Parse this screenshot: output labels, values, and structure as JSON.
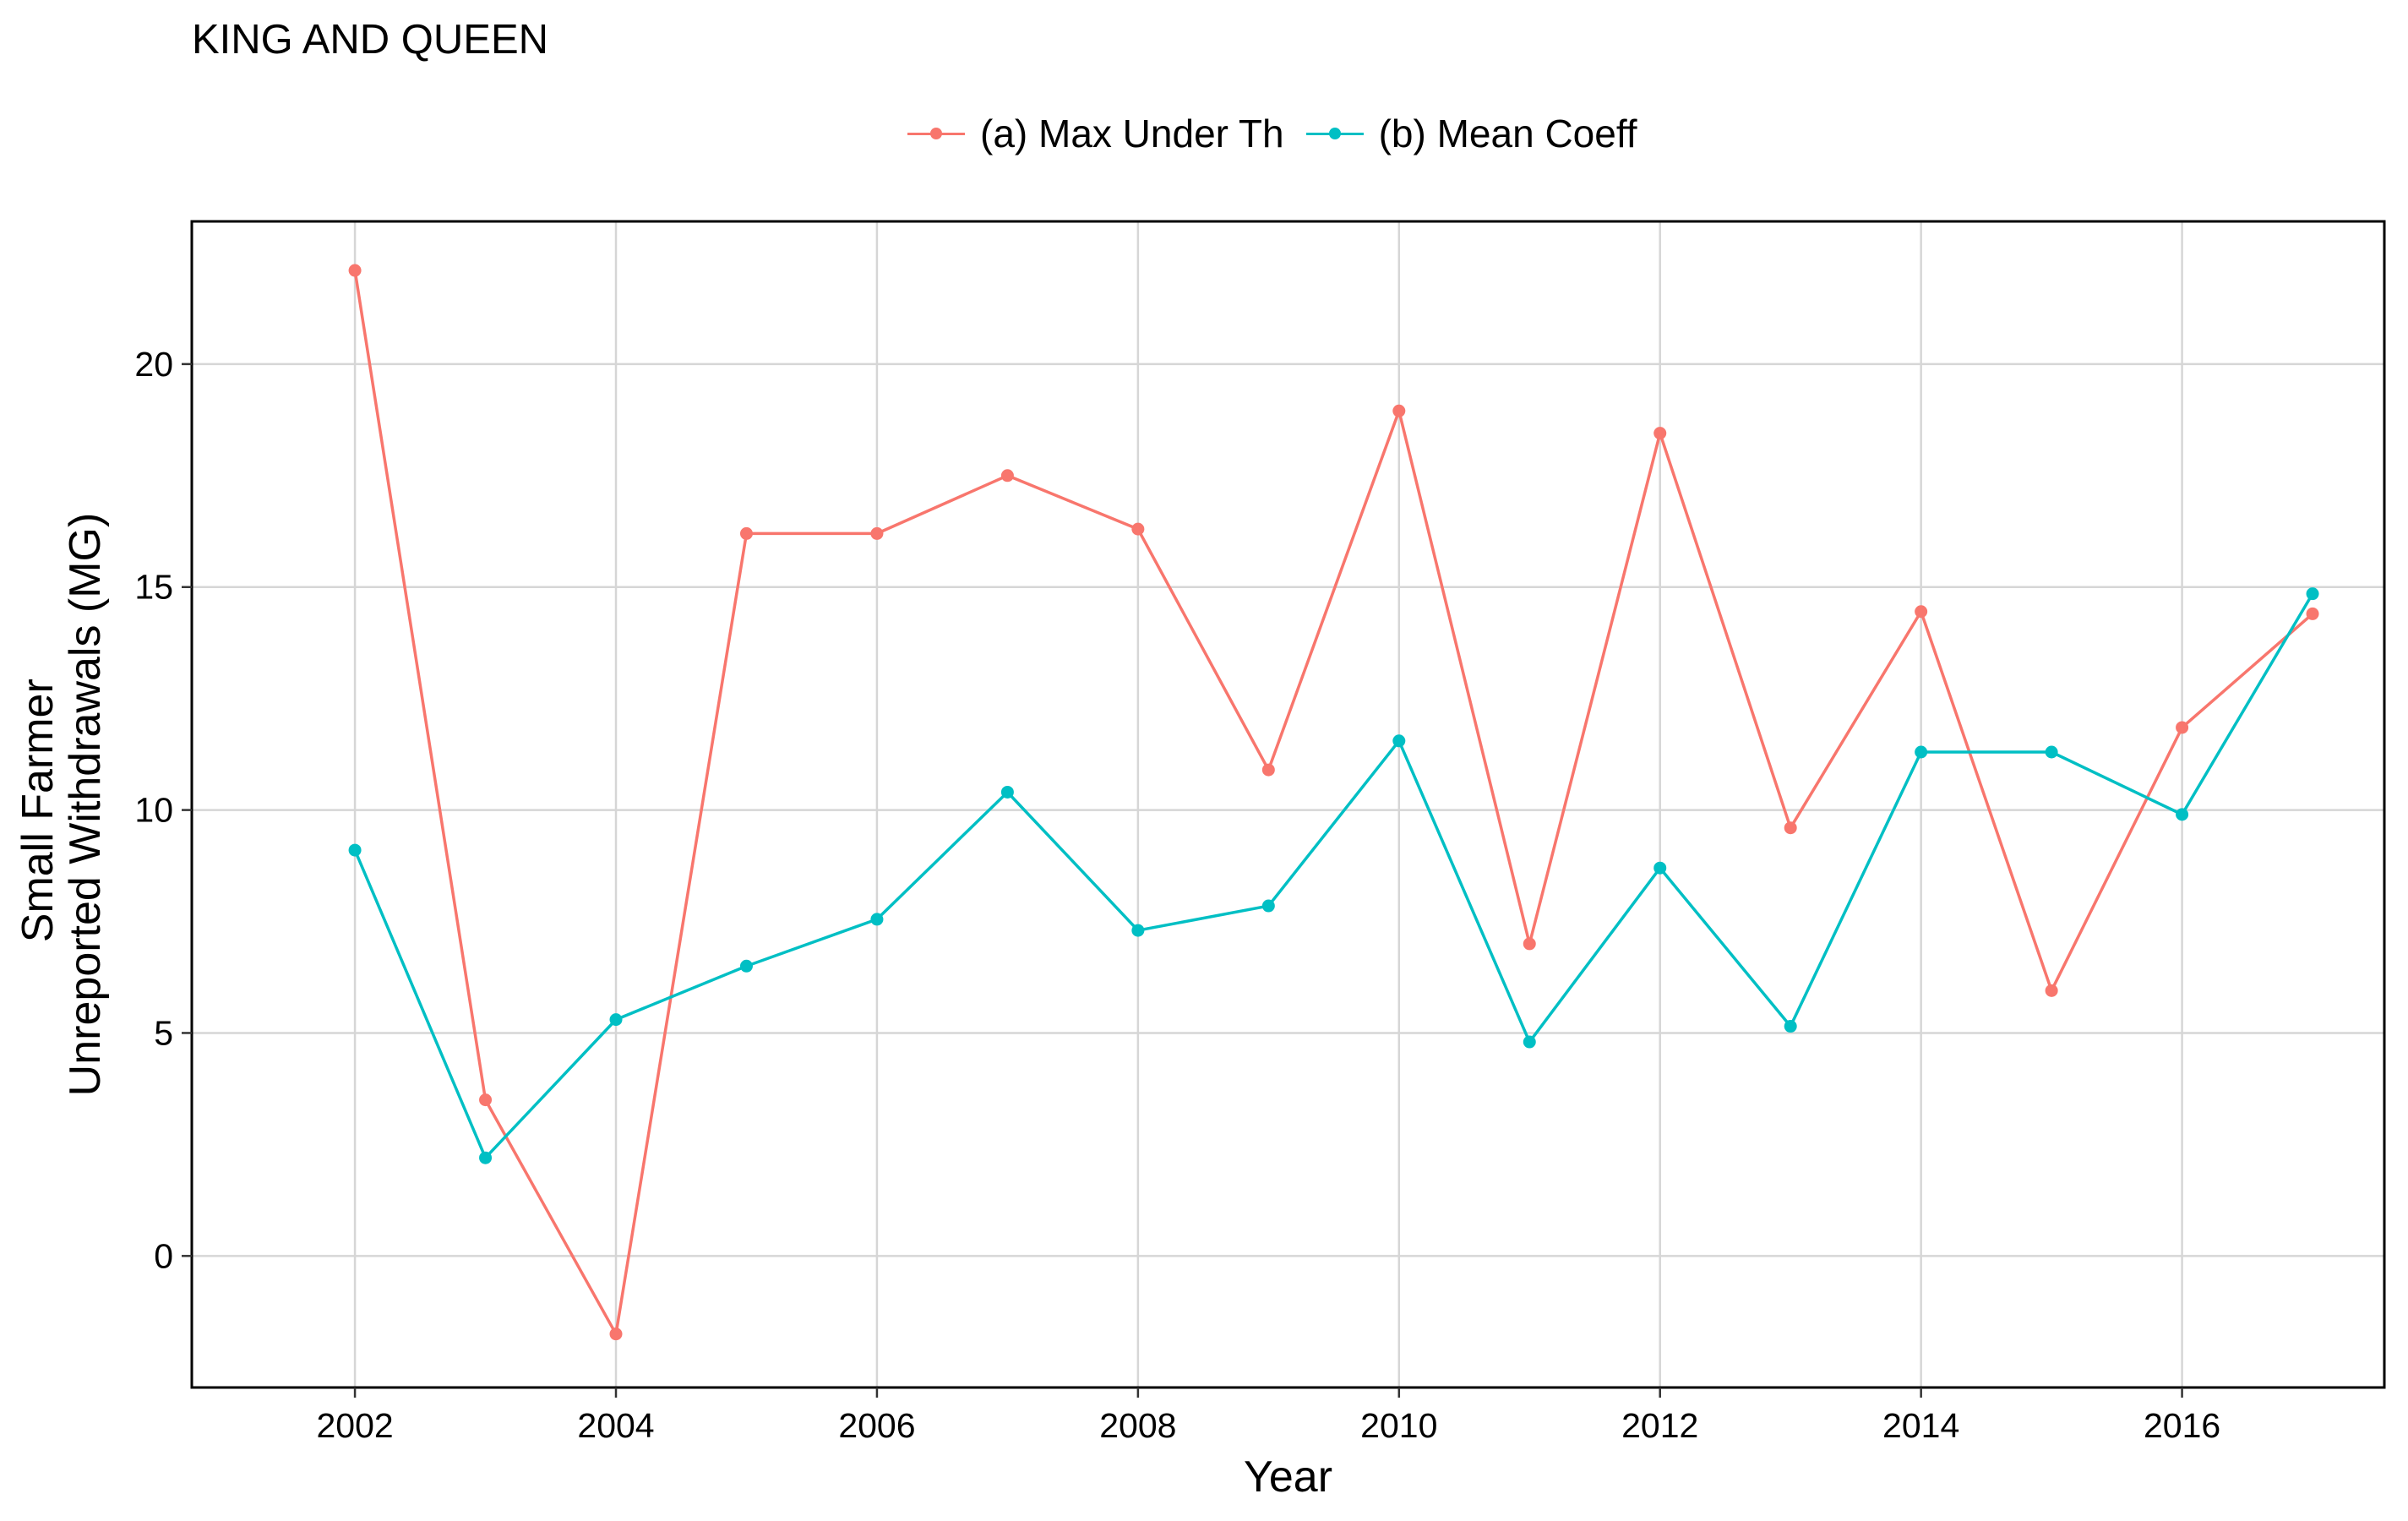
{
  "chart_data": {
    "type": "line",
    "title": "KING AND QUEEN",
    "xlabel": "Year",
    "ylabel_lines": [
      "Small Farmer",
      "Unreported Withdrawals (MG)"
    ],
    "x": [
      2002,
      2003,
      2004,
      2005,
      2006,
      2007,
      2008,
      2009,
      2010,
      2011,
      2012,
      2013,
      2014,
      2015,
      2016,
      2017
    ],
    "xlim": [
      2000.75,
      2017.55
    ],
    "ylim": [
      -2.95,
      23.2
    ],
    "x_ticks": [
      2002,
      2004,
      2006,
      2008,
      2010,
      2012,
      2014,
      2016
    ],
    "y_ticks": [
      0,
      5,
      10,
      15,
      20
    ],
    "x_tick_labels": [
      "2002",
      "2004",
      "2006",
      "2008",
      "2010",
      "2012",
      "2014",
      "2016"
    ],
    "y_tick_labels": [
      "0",
      "5",
      "10",
      "15",
      "20"
    ],
    "grid": true,
    "legend_position": "top",
    "series": [
      {
        "name": "(a) Max Under Th",
        "color": "#F8766D",
        "values": [
          22.1,
          3.5,
          -1.75,
          16.2,
          16.2,
          17.5,
          16.3,
          10.9,
          18.95,
          7.0,
          18.45,
          9.6,
          14.45,
          5.95,
          11.85,
          14.4
        ]
      },
      {
        "name": "(b) Mean Coeff",
        "color": "#00BFC4",
        "values": [
          9.1,
          2.2,
          5.3,
          6.5,
          7.55,
          10.4,
          7.3,
          7.85,
          11.55,
          4.8,
          8.7,
          5.15,
          11.3,
          11.3,
          9.9,
          14.85
        ]
      }
    ]
  }
}
